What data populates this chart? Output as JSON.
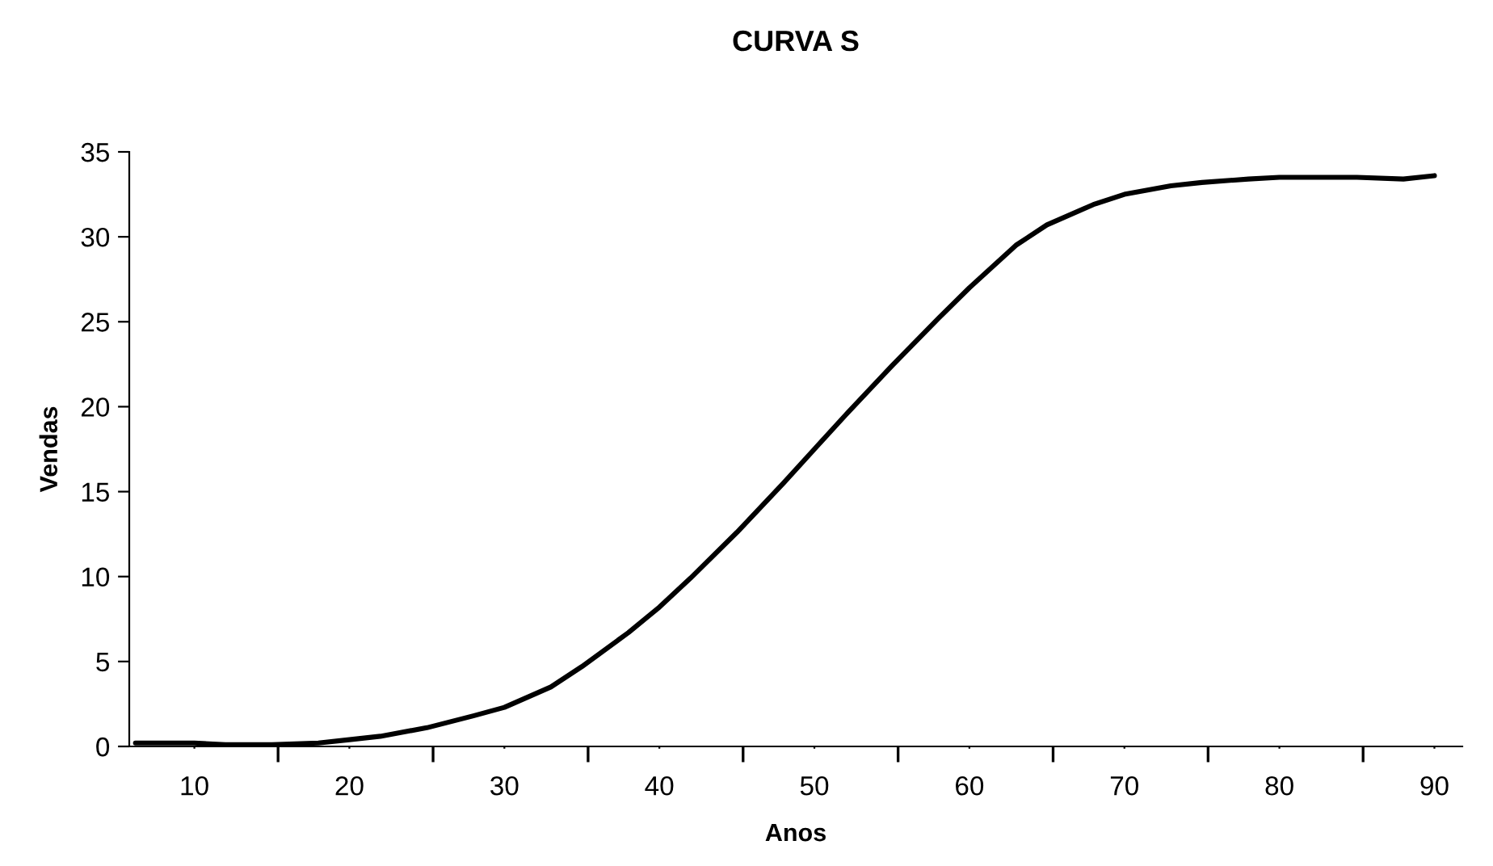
{
  "chart_data": {
    "type": "line",
    "title": "CURVA S",
    "xlabel": "Anos",
    "ylabel": "Vendas",
    "x": [
      6.2,
      8,
      10,
      12,
      15,
      18,
      20,
      22,
      25,
      28,
      30,
      33,
      35,
      38,
      40,
      42,
      45,
      48,
      50,
      52,
      55,
      58,
      60,
      63,
      65,
      68,
      70,
      73,
      75,
      78,
      80,
      83,
      85,
      88,
      90
    ],
    "series": [
      {
        "color": "#000000",
        "values": [
          0.2,
          0.2,
          0.2,
          0.1,
          0.1,
          0.2,
          0.4,
          0.6,
          1.1,
          1.8,
          2.3,
          3.5,
          4.7,
          6.7,
          8.2,
          9.9,
          12.6,
          15.5,
          17.5,
          19.5,
          22.4,
          25.2,
          27.0,
          29.5,
          30.7,
          31.9,
          32.5,
          33.0,
          33.2,
          33.4,
          33.5,
          33.5,
          33.5,
          33.4,
          33.6
        ]
      }
    ],
    "xlim": [
      5.8,
      91.8
    ],
    "xticks": [
      10,
      {
        "value": 15.4,
        "label": null
      },
      20,
      {
        "value": 25.4,
        "label": null
      },
      30,
      {
        "value": 35.4,
        "label": null
      },
      40,
      {
        "value": 45.4,
        "label": null
      },
      50,
      {
        "value": 55.4,
        "label": null
      },
      60,
      {
        "value": 65.4,
        "label": null
      },
      70,
      {
        "value": 75.4,
        "label": null
      },
      80,
      {
        "value": 85.4,
        "label": null
      },
      90
    ],
    "ylim": [
      0,
      35
    ],
    "yticks": [
      0,
      5,
      10,
      15,
      20,
      25,
      30,
      35
    ],
    "grid": false,
    "legend": false,
    "marker": "none",
    "line_style": "solid"
  }
}
